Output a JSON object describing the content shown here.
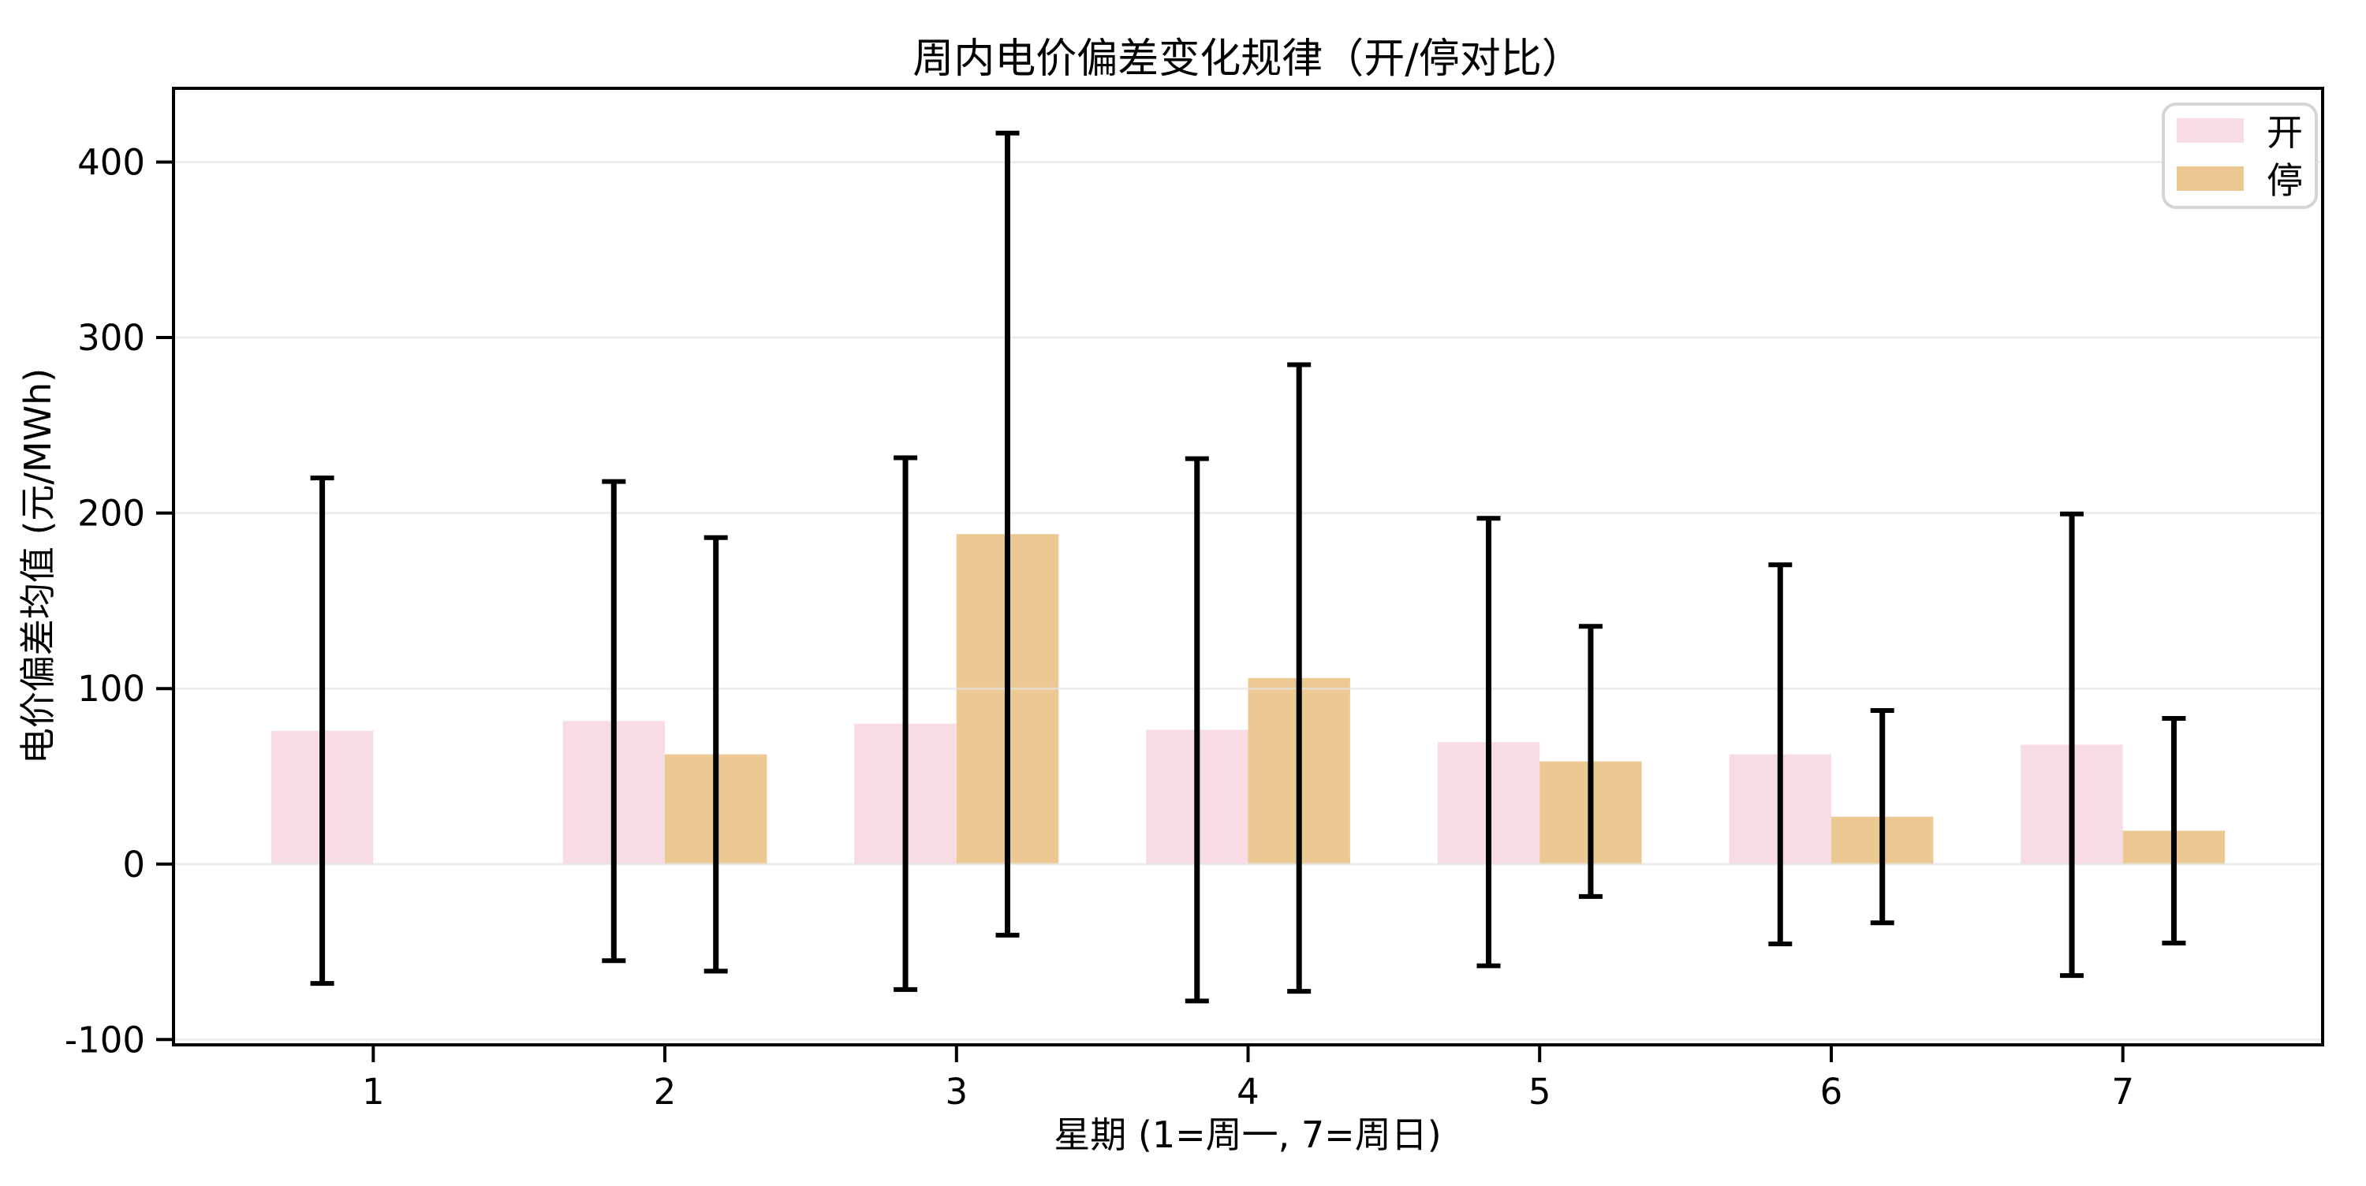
{
  "figure": {
    "background": "#ffffff",
    "plot_background": "#ffffff",
    "spine_color": "#000000"
  },
  "chart_data": {
    "type": "bar",
    "title": "周内电价偏差变化规律（开/停对比）",
    "xlabel": "星期 (1=周一, 7=周日)",
    "ylabel": "电价偏差均值 (元/MWh)",
    "categories": [
      1,
      2,
      3,
      4,
      5,
      6,
      7
    ],
    "xtick_labels": [
      "1",
      "2",
      "3",
      "4",
      "5",
      "6",
      "7"
    ],
    "yticks": [
      -100,
      0,
      100,
      200,
      300,
      400
    ],
    "ytick_labels": [
      "-100",
      "0",
      "100",
      "200",
      "300",
      "400"
    ],
    "xlim": [
      0.315,
      7.685
    ],
    "ylim": [
      -103,
      442
    ],
    "bar_width": 0.35,
    "grid": "horizontal",
    "gridline_color": "#e4e4e4",
    "error_bar_color": "#000000",
    "legend_position": "upper right",
    "series": [
      {
        "name": "开",
        "color": "#f7dde3",
        "values": [
          76,
          81.5,
          80,
          76.5,
          69.5,
          62.5,
          68
        ],
        "errors": [
          144,
          136.5,
          151.5,
          154.5,
          127.5,
          108,
          131.5
        ]
      },
      {
        "name": "停",
        "color": "#ecc992",
        "values": [
          null,
          62.5,
          188,
          106,
          58.5,
          27,
          19
        ],
        "errors": [
          null,
          123.5,
          228.5,
          178.5,
          77,
          60.5,
          64
        ]
      }
    ]
  }
}
